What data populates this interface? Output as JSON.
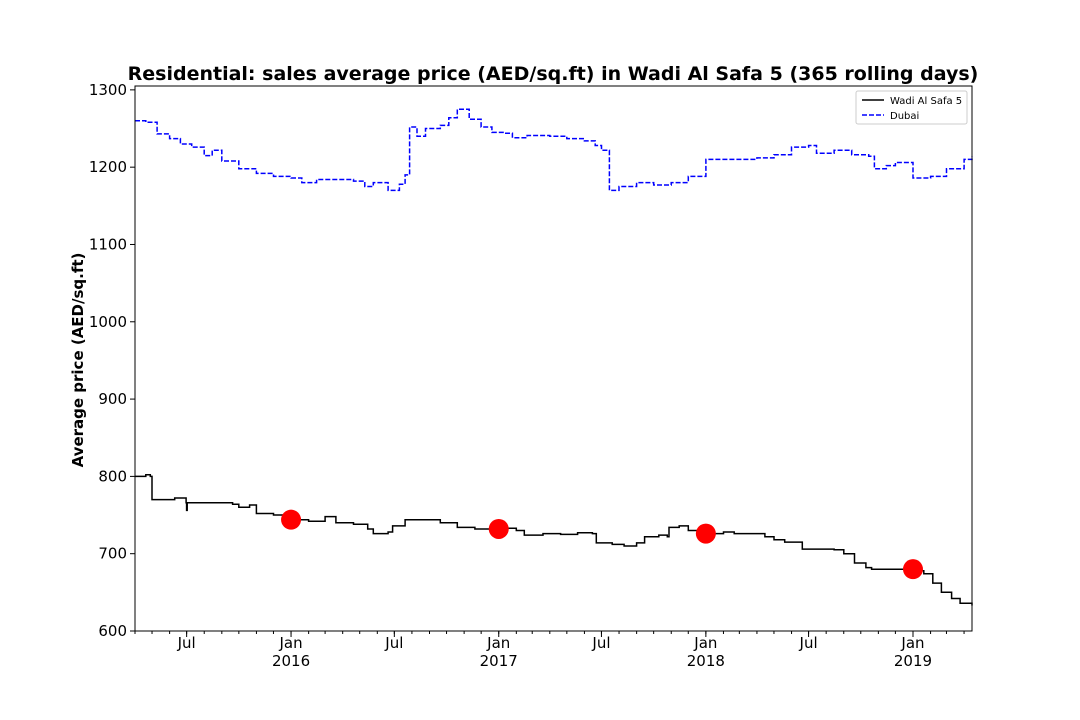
{
  "chart_data": {
    "type": "line",
    "title": "Residential: sales average price (AED/sq.ft) in Wadi Al Safa 5 (365 rolling days)",
    "xlabel": "",
    "ylabel": "Average price (AED/sq.ft)",
    "xlim": [
      "2015-04-01",
      "2019-04-15"
    ],
    "ylim": [
      600,
      1305
    ],
    "y_ticks": [
      600,
      700,
      800,
      900,
      1000,
      1100,
      1200,
      1300
    ],
    "x_ticks": [
      {
        "date": "2015-07-01",
        "label": "Jul",
        "year": ""
      },
      {
        "date": "2016-01-01",
        "label": "Jan",
        "year": "2016"
      },
      {
        "date": "2016-07-01",
        "label": "Jul",
        "year": ""
      },
      {
        "date": "2017-01-01",
        "label": "Jan",
        "year": "2017"
      },
      {
        "date": "2017-07-01",
        "label": "Jul",
        "year": ""
      },
      {
        "date": "2018-01-01",
        "label": "Jan",
        "year": "2018"
      },
      {
        "date": "2018-07-01",
        "label": "Jul",
        "year": ""
      },
      {
        "date": "2019-01-01",
        "label": "Jan",
        "year": "2019"
      }
    ],
    "legend_position": "top-right",
    "grid": false,
    "series": [
      {
        "name": "Wadi Al Safa 5",
        "color": "#000000",
        "style": "solid",
        "points": [
          [
            "2015-04-01",
            800
          ],
          [
            "2015-04-20",
            802
          ],
          [
            "2015-04-28",
            800
          ],
          [
            "2015-05-01",
            770
          ],
          [
            "2015-05-20",
            770
          ],
          [
            "2015-06-10",
            772
          ],
          [
            "2015-06-30",
            766
          ],
          [
            "2015-07-01",
            756
          ],
          [
            "2015-07-02",
            766
          ],
          [
            "2015-08-15",
            766
          ],
          [
            "2015-09-20",
            764
          ],
          [
            "2015-10-01",
            760
          ],
          [
            "2015-10-20",
            763
          ],
          [
            "2015-11-01",
            752
          ],
          [
            "2015-12-01",
            750
          ],
          [
            "2016-01-01",
            744
          ],
          [
            "2016-02-01",
            742
          ],
          [
            "2016-03-01",
            748
          ],
          [
            "2016-03-20",
            740
          ],
          [
            "2016-04-20",
            738
          ],
          [
            "2016-05-15",
            732
          ],
          [
            "2016-05-25",
            726
          ],
          [
            "2016-06-20",
            728
          ],
          [
            "2016-06-28",
            736
          ],
          [
            "2016-07-20",
            744
          ],
          [
            "2016-08-20",
            744
          ],
          [
            "2016-09-20",
            740
          ],
          [
            "2016-10-20",
            734
          ],
          [
            "2016-11-20",
            732
          ],
          [
            "2016-12-20",
            732
          ],
          [
            "2017-01-01",
            733
          ],
          [
            "2017-02-01",
            730
          ],
          [
            "2017-02-15",
            724
          ],
          [
            "2017-03-20",
            726
          ],
          [
            "2017-04-20",
            725
          ],
          [
            "2017-05-20",
            727
          ],
          [
            "2017-06-15",
            726
          ],
          [
            "2017-06-22",
            714
          ],
          [
            "2017-07-20",
            712
          ],
          [
            "2017-08-10",
            710
          ],
          [
            "2017-09-01",
            714
          ],
          [
            "2017-09-15",
            722
          ],
          [
            "2017-10-10",
            724
          ],
          [
            "2017-10-25",
            722
          ],
          [
            "2017-10-28",
            734
          ],
          [
            "2017-11-15",
            736
          ],
          [
            "2017-12-01",
            730
          ],
          [
            "2018-01-01",
            726
          ],
          [
            "2018-02-01",
            728
          ],
          [
            "2018-02-20",
            726
          ],
          [
            "2018-03-20",
            726
          ],
          [
            "2018-04-15",
            722
          ],
          [
            "2018-05-01",
            718
          ],
          [
            "2018-05-20",
            715
          ],
          [
            "2018-06-20",
            706
          ],
          [
            "2018-07-20",
            706
          ],
          [
            "2018-08-15",
            705
          ],
          [
            "2018-09-01",
            700
          ],
          [
            "2018-09-20",
            688
          ],
          [
            "2018-10-10",
            682
          ],
          [
            "2018-10-20",
            680
          ],
          [
            "2018-11-20",
            680
          ],
          [
            "2018-12-20",
            677
          ],
          [
            "2019-01-01",
            678
          ],
          [
            "2019-01-20",
            674
          ],
          [
            "2019-02-05",
            662
          ],
          [
            "2019-02-20",
            650
          ],
          [
            "2019-03-10",
            642
          ],
          [
            "2019-03-25",
            636
          ],
          [
            "2019-04-15",
            633
          ]
        ]
      },
      {
        "name": "Dubai",
        "color": "#0000ff",
        "style": "dashed",
        "points": [
          [
            "2015-04-01",
            1260
          ],
          [
            "2015-04-20",
            1258
          ],
          [
            "2015-05-10",
            1243
          ],
          [
            "2015-06-01",
            1237
          ],
          [
            "2015-06-20",
            1230
          ],
          [
            "2015-07-10",
            1226
          ],
          [
            "2015-08-01",
            1215
          ],
          [
            "2015-08-15",
            1222
          ],
          [
            "2015-09-01",
            1208
          ],
          [
            "2015-10-01",
            1198
          ],
          [
            "2015-11-01",
            1192
          ],
          [
            "2015-12-01",
            1188
          ],
          [
            "2016-01-01",
            1186
          ],
          [
            "2016-01-20",
            1180
          ],
          [
            "2016-02-15",
            1184
          ],
          [
            "2016-03-20",
            1184
          ],
          [
            "2016-04-20",
            1182
          ],
          [
            "2016-05-10",
            1175
          ],
          [
            "2016-05-25",
            1180
          ],
          [
            "2016-06-20",
            1170
          ],
          [
            "2016-07-10",
            1178
          ],
          [
            "2016-07-20",
            1190
          ],
          [
            "2016-07-28",
            1252
          ],
          [
            "2016-08-10",
            1240
          ],
          [
            "2016-08-25",
            1250
          ],
          [
            "2016-09-20",
            1254
          ],
          [
            "2016-10-05",
            1264
          ],
          [
            "2016-10-20",
            1275
          ],
          [
            "2016-11-10",
            1262
          ],
          [
            "2016-12-01",
            1252
          ],
          [
            "2016-12-20",
            1245
          ],
          [
            "2017-01-10",
            1244
          ],
          [
            "2017-01-25",
            1238
          ],
          [
            "2017-02-20",
            1241
          ],
          [
            "2017-04-01",
            1240
          ],
          [
            "2017-05-01",
            1237
          ],
          [
            "2017-06-01",
            1234
          ],
          [
            "2017-06-20",
            1228
          ],
          [
            "2017-07-01",
            1222
          ],
          [
            "2017-07-15",
            1170
          ],
          [
            "2017-08-01",
            1175
          ],
          [
            "2017-09-01",
            1180
          ],
          [
            "2017-10-01",
            1177
          ],
          [
            "2017-11-01",
            1180
          ],
          [
            "2017-12-01",
            1188
          ],
          [
            "2018-01-01",
            1210
          ],
          [
            "2018-02-01",
            1210
          ],
          [
            "2018-03-01",
            1210
          ],
          [
            "2018-04-01",
            1212
          ],
          [
            "2018-05-01",
            1216
          ],
          [
            "2018-06-01",
            1226
          ],
          [
            "2018-07-01",
            1228
          ],
          [
            "2018-07-15",
            1218
          ],
          [
            "2018-08-15",
            1222
          ],
          [
            "2018-09-15",
            1216
          ],
          [
            "2018-10-15",
            1214
          ],
          [
            "2018-10-25",
            1198
          ],
          [
            "2018-11-15",
            1202
          ],
          [
            "2018-12-01",
            1206
          ],
          [
            "2018-12-20",
            1206
          ],
          [
            "2019-01-01",
            1186
          ],
          [
            "2019-02-01",
            1188
          ],
          [
            "2019-03-01",
            1198
          ],
          [
            "2019-04-01",
            1210
          ],
          [
            "2019-04-15",
            1214
          ]
        ]
      }
    ],
    "markers": {
      "color": "#ff0000",
      "points": [
        [
          "2016-01-01",
          744
        ],
        [
          "2017-01-01",
          732
        ],
        [
          "2018-01-01",
          726
        ],
        [
          "2019-01-01",
          680
        ]
      ]
    }
  }
}
